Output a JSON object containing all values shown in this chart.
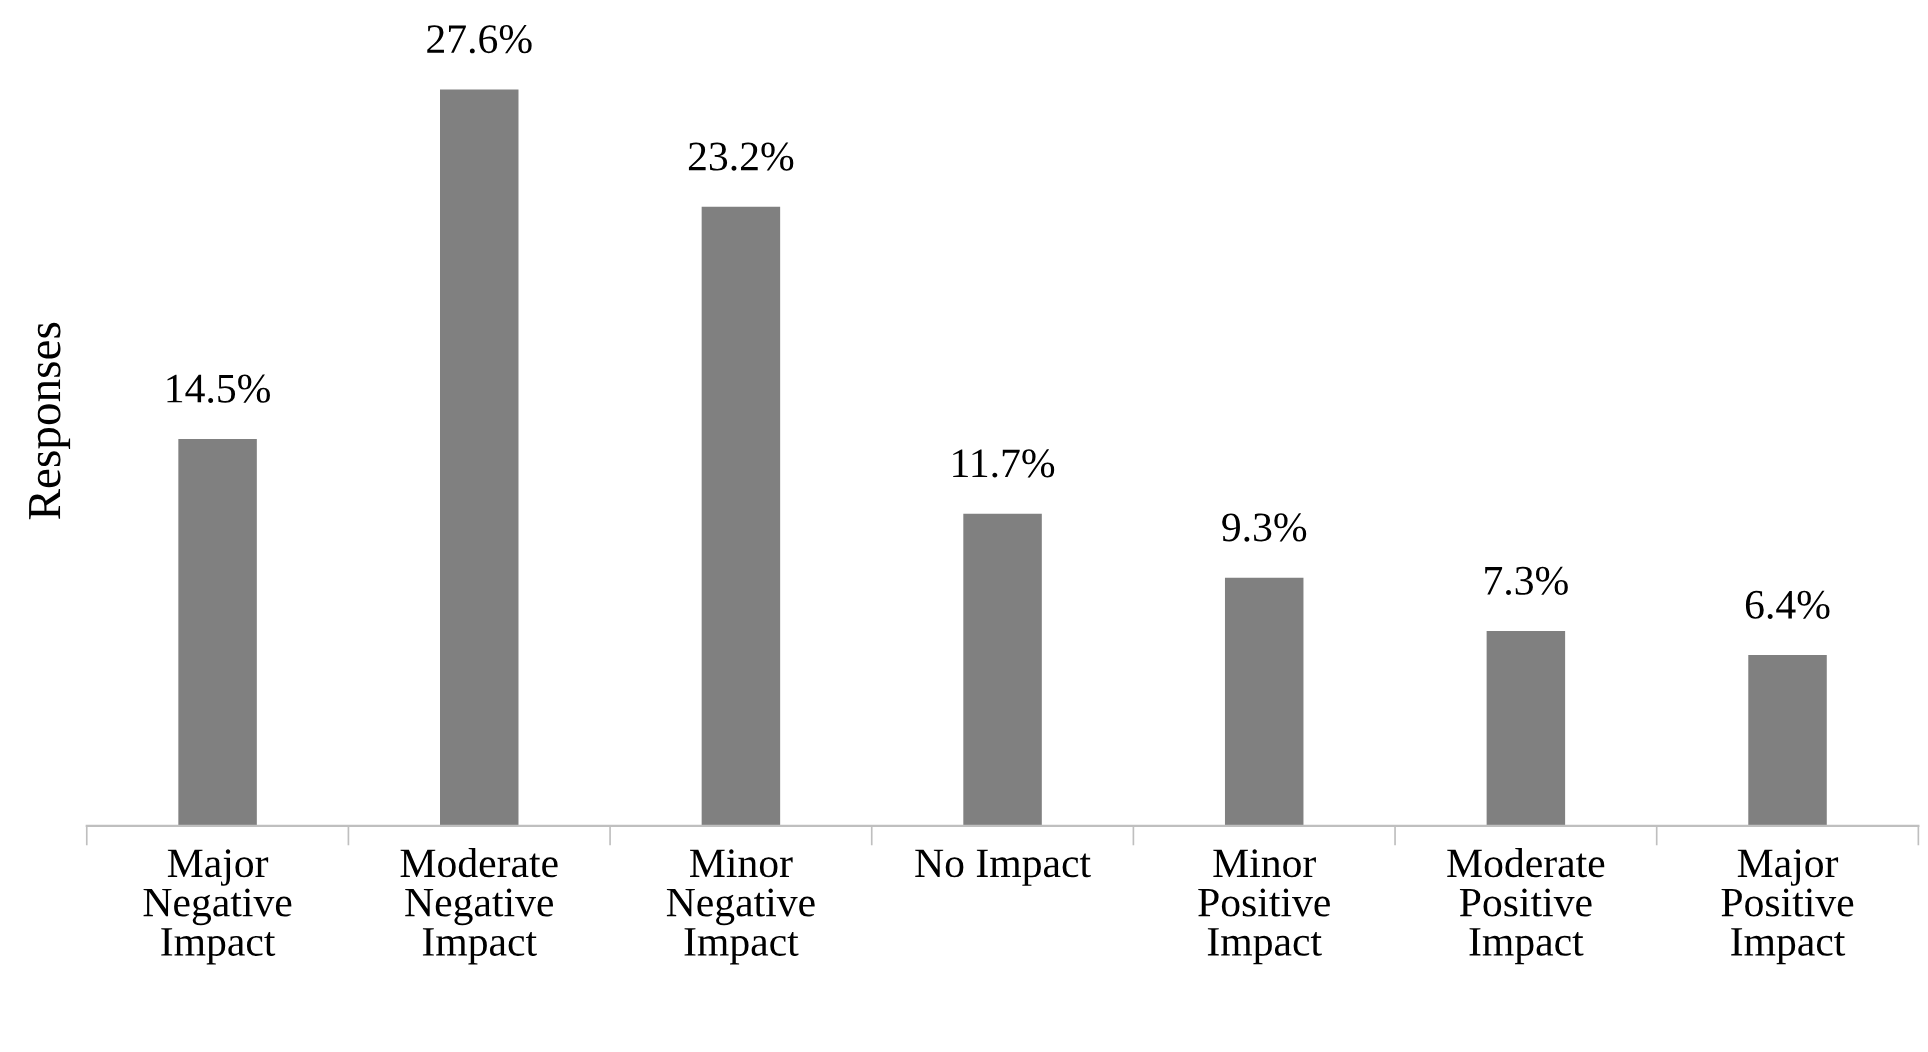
{
  "chart_data": {
    "type": "bar",
    "ylabel": "Responses",
    "categories": [
      "Major Negative Impact",
      "Moderate Negative Impact",
      "Minor Negative Impact",
      "No Impact",
      "Minor Positive Impact",
      "Moderate Positive Impact",
      "Major Positive Impact"
    ],
    "values": [
      14.5,
      27.6,
      23.2,
      11.7,
      9.3,
      7.3,
      6.4
    ],
    "value_labels": [
      "14.5%",
      "27.6%",
      "23.2%",
      "11.7%",
      "9.3%",
      "7.3%",
      "6.4%"
    ],
    "color": "#808080"
  }
}
